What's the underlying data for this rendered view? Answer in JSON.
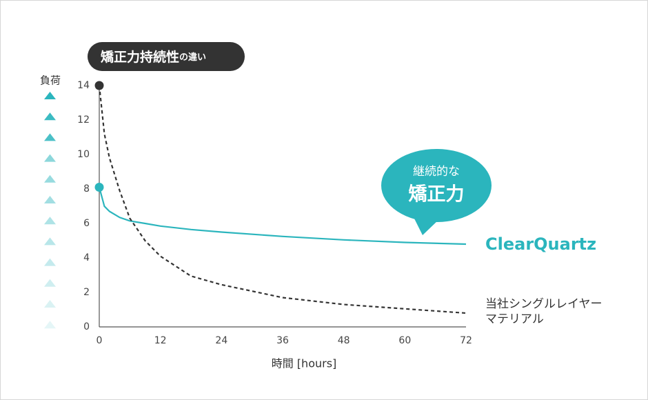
{
  "chart_data": {
    "type": "line",
    "title": "矯正力持続性",
    "title_suffix": "の違い",
    "y_label": "負荷",
    "x_label": "時間 [hours]",
    "callout": [
      "継続的な",
      "矯正力"
    ],
    "x": [
      0,
      1,
      2,
      4,
      6,
      9,
      12,
      18,
      24,
      36,
      48,
      60,
      72
    ],
    "series": [
      {
        "name": "ClearQuartz",
        "color": "#2bb5bd",
        "dashed": false,
        "values": [
          8.1,
          7.0,
          6.7,
          6.35,
          6.15,
          6.0,
          5.85,
          5.65,
          5.5,
          5.25,
          5.05,
          4.9,
          4.8
        ]
      },
      {
        "name": "当社シングルレイヤーマテリアル",
        "color": "#333333",
        "dashed": true,
        "values": [
          14,
          11.2,
          9.8,
          7.9,
          6.3,
          5.0,
          4.1,
          2.95,
          2.45,
          1.7,
          1.3,
          1.05,
          0.8
        ]
      }
    ],
    "xlim": [
      0,
      72
    ],
    "xticks": [
      0,
      12,
      24,
      36,
      48,
      60,
      72
    ],
    "ylim": [
      0,
      14
    ],
    "yticks": [
      0,
      2,
      4,
      6,
      8,
      10,
      12,
      14
    ]
  }
}
